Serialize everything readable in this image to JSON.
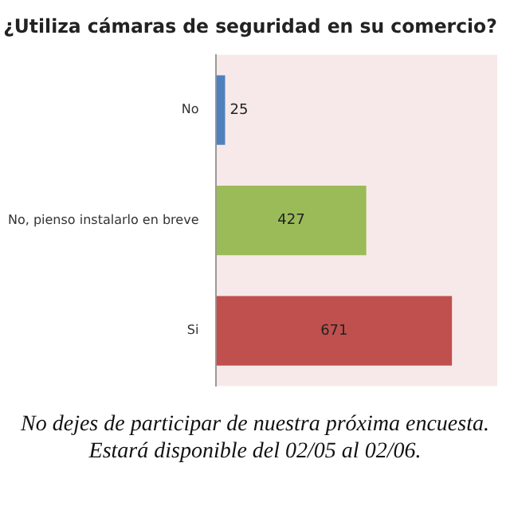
{
  "chart_data": {
    "type": "bar",
    "orientation": "horizontal",
    "title": "¿Utiliza cámaras de seguridad en su comercio?",
    "categories": [
      "No",
      "No, pienso instalarlo en breve",
      "Si"
    ],
    "values": [
      25,
      427,
      671
    ],
    "colors": [
      "#4f81bd",
      "#9bbb59",
      "#c0504d"
    ],
    "data_labels": true,
    "legend": false,
    "annotations": [
      "No dejes de participar de nuestra próxima encuesta.",
      "Estará disponible del 02/05 al 02/06."
    ]
  }
}
